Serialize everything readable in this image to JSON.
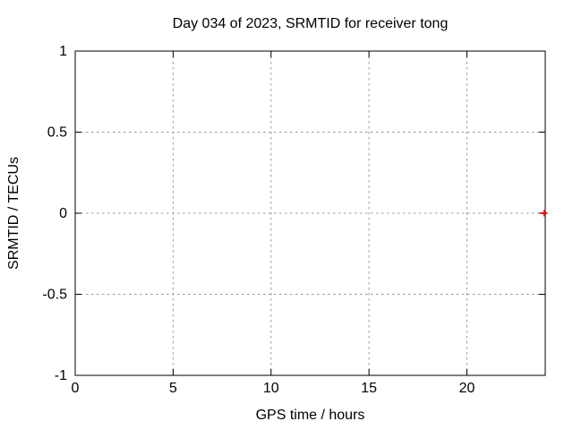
{
  "figure": {
    "background": "#ffffff",
    "text_color": "#000000"
  },
  "chart_data": {
    "type": "scatter",
    "title": "Day 034 of 2023, SRMTID for receiver tong",
    "xlabel": "GPS time / hours",
    "ylabel": "SRMTID / TECUs",
    "xlim": [
      0,
      24
    ],
    "ylim": [
      -1,
      1
    ],
    "xticks": [
      {
        "value": 0,
        "label": "0"
      },
      {
        "value": 5,
        "label": "5"
      },
      {
        "value": 10,
        "label": "10"
      },
      {
        "value": 15,
        "label": "15"
      },
      {
        "value": 20,
        "label": "20"
      }
    ],
    "yticks": [
      {
        "value": -1,
        "label": "-1"
      },
      {
        "value": -0.5,
        "label": "-0.5"
      },
      {
        "value": 0,
        "label": "0"
      },
      {
        "value": 0.5,
        "label": "0.5"
      },
      {
        "value": 1,
        "label": "1"
      }
    ],
    "grid": true,
    "legend": "none",
    "grid_color": "#999999",
    "axis_color": "#000000",
    "series": [
      {
        "name": "SRMTID",
        "marker": "plus",
        "color": "#ff0000",
        "points": [
          {
            "x": 23.95,
            "y": 0
          }
        ]
      }
    ]
  }
}
